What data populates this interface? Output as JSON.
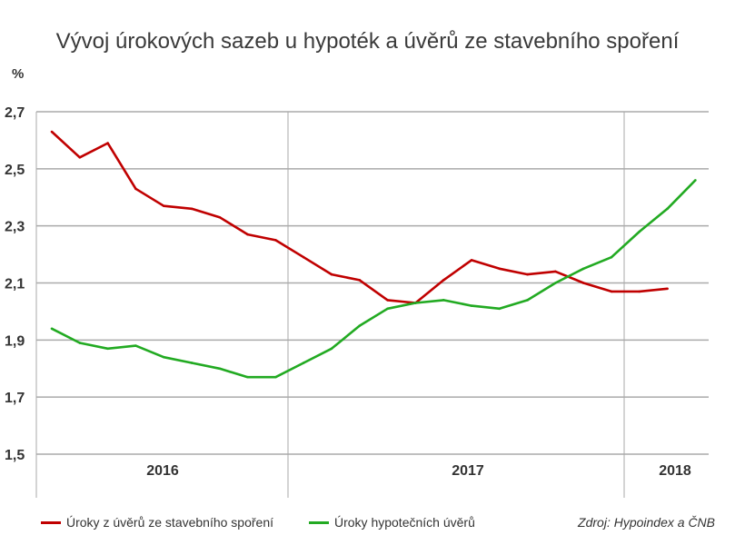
{
  "chart_data": {
    "type": "line",
    "title": "Vývoj úrokových sazeb u hypoték a úvěrů ze stavebního spoření",
    "ylabel": "%",
    "xlabel": "",
    "ylim": [
      1.5,
      2.7
    ],
    "yticks": [
      "1,5",
      "1,7",
      "1,9",
      "2,1",
      "2,3",
      "2,5",
      "2,7"
    ],
    "ytick_values": [
      1.5,
      1.7,
      1.9,
      2.1,
      2.3,
      2.5,
      2.7
    ],
    "xtick_labels": [
      "2016",
      "2017",
      "2018"
    ],
    "x_count": 24,
    "grid": true,
    "legend_placement": "bottom",
    "series": [
      {
        "name": "Úroky z úvěrů ze stavebního spoření",
        "color": "#c00000",
        "values": [
          2.63,
          2.54,
          2.59,
          2.43,
          2.37,
          2.36,
          2.33,
          2.27,
          2.25,
          2.19,
          2.13,
          2.11,
          2.04,
          2.03,
          2.11,
          2.18,
          2.15,
          2.13,
          2.14,
          2.1,
          2.07,
          2.07,
          2.08,
          null
        ]
      },
      {
        "name": "Úroky hypotečních úvěrů",
        "color": "#22aa22",
        "values": [
          1.94,
          1.89,
          1.87,
          1.88,
          1.84,
          1.82,
          1.8,
          1.77,
          1.77,
          1.82,
          1.87,
          1.95,
          2.01,
          2.03,
          2.04,
          2.02,
          2.01,
          2.04,
          2.1,
          2.15,
          2.19,
          2.28,
          2.36,
          2.46
        ]
      }
    ],
    "source": "Zdroj: Hypoindex a ČNB"
  }
}
